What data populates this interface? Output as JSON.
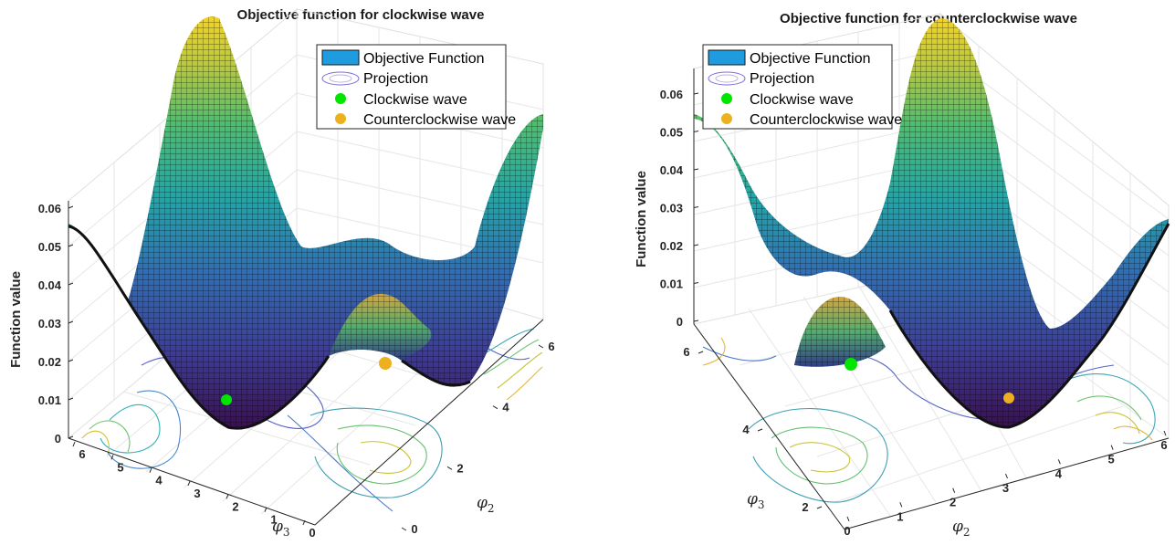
{
  "chart_data": [
    {
      "type": "surface",
      "title": "Objective function for clockwise wave",
      "zlabel": "Function value",
      "xlabel_symbol": "φ",
      "xlabel_sub": "3",
      "ylabel_symbol": "φ",
      "ylabel_sub": "2",
      "zlim": [
        0,
        0.06
      ],
      "z_ticks": [
        "0",
        "0.01",
        "0.02",
        "0.03",
        "0.04",
        "0.05",
        "0.06"
      ],
      "phi3_ticks": [
        "6",
        "5",
        "4",
        "3",
        "2",
        "1",
        "0"
      ],
      "phi2_ticks": [
        "0",
        "2",
        "4",
        "6"
      ],
      "grid": true,
      "legend_position": "top-right",
      "legend": [
        "Objective Function",
        "Projection",
        "Clockwise wave",
        "Counterclockwise wave"
      ],
      "points": [
        {
          "name": "Clockwise wave",
          "phi3": 2.1,
          "phi2": 4.2,
          "value": 0.0
        },
        {
          "name": "Counterclockwise wave",
          "phi3": 4.2,
          "phi2": 2.1,
          "value": 0.0
        }
      ]
    },
    {
      "type": "surface",
      "title": "Objective function for counterclockwise wave",
      "zlabel": "Function value",
      "xlabel_symbol": "φ",
      "xlabel_sub": "2",
      "ylabel_symbol": "φ",
      "ylabel_sub": "3",
      "zlim": [
        0,
        0.06
      ],
      "z_ticks": [
        "0",
        "0.01",
        "0.02",
        "0.03",
        "0.04",
        "0.05",
        "0.06"
      ],
      "phi2_ticks": [
        "0",
        "1",
        "2",
        "3",
        "4",
        "5",
        "6"
      ],
      "phi3_ticks": [
        "2",
        "4",
        "6"
      ],
      "grid": true,
      "legend_position": "top-right",
      "legend": [
        "Objective Function",
        "Projection",
        "Clockwise wave",
        "Counterclockwise wave"
      ],
      "points": [
        {
          "name": "Clockwise wave",
          "phi3": 2.1,
          "phi2": 4.2,
          "value": 0.0
        },
        {
          "name": "Counterclockwise wave",
          "phi3": 4.2,
          "phi2": 2.1,
          "value": 0.0
        }
      ]
    }
  ],
  "colors": {
    "clockwise": "#00e600",
    "counterclockwise": "#edb120",
    "legend_patch": "#1f9be0",
    "projection": "#7e6fd6",
    "axis": "#262626",
    "grid": "#e3e3e3"
  }
}
